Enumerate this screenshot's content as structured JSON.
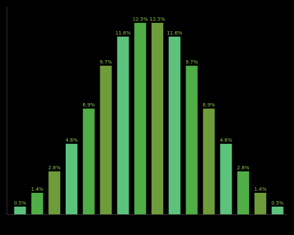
{
  "chart_data": {
    "type": "bar",
    "categories": [
      null,
      null,
      null,
      null,
      null,
      null,
      null,
      null,
      null,
      null,
      null,
      null,
      null,
      null,
      null,
      null
    ],
    "values": [
      0.5,
      1.4,
      2.8,
      4.6,
      6.9,
      9.7,
      11.6,
      12.5,
      12.5,
      11.6,
      9.7,
      6.9,
      4.6,
      2.8,
      1.4,
      0.5
    ],
    "value_labels": [
      "0.5%",
      "1.4%",
      "2.8%",
      "4.6%",
      "6.9%",
      "9.7%",
      "11.6%",
      "12.5%",
      "12.5%",
      "11.6%",
      "9.7%",
      "6.9%",
      "4.6%",
      "2.8%",
      "1.4%",
      "0.5%"
    ],
    "colors": [
      "#5cc37c",
      "#4fae45",
      "#6e9c3a",
      "#5cc37c",
      "#4fae45",
      "#6e9c3a",
      "#5cc37c",
      "#4fae45",
      "#6e9c3a",
      "#5cc37c",
      "#4fae45",
      "#6e9c3a",
      "#5cc37c",
      "#4fae45",
      "#6e9c3a",
      "#5cc37c"
    ],
    "label_color": "#8cc152",
    "ylim": [
      0,
      13
    ]
  }
}
